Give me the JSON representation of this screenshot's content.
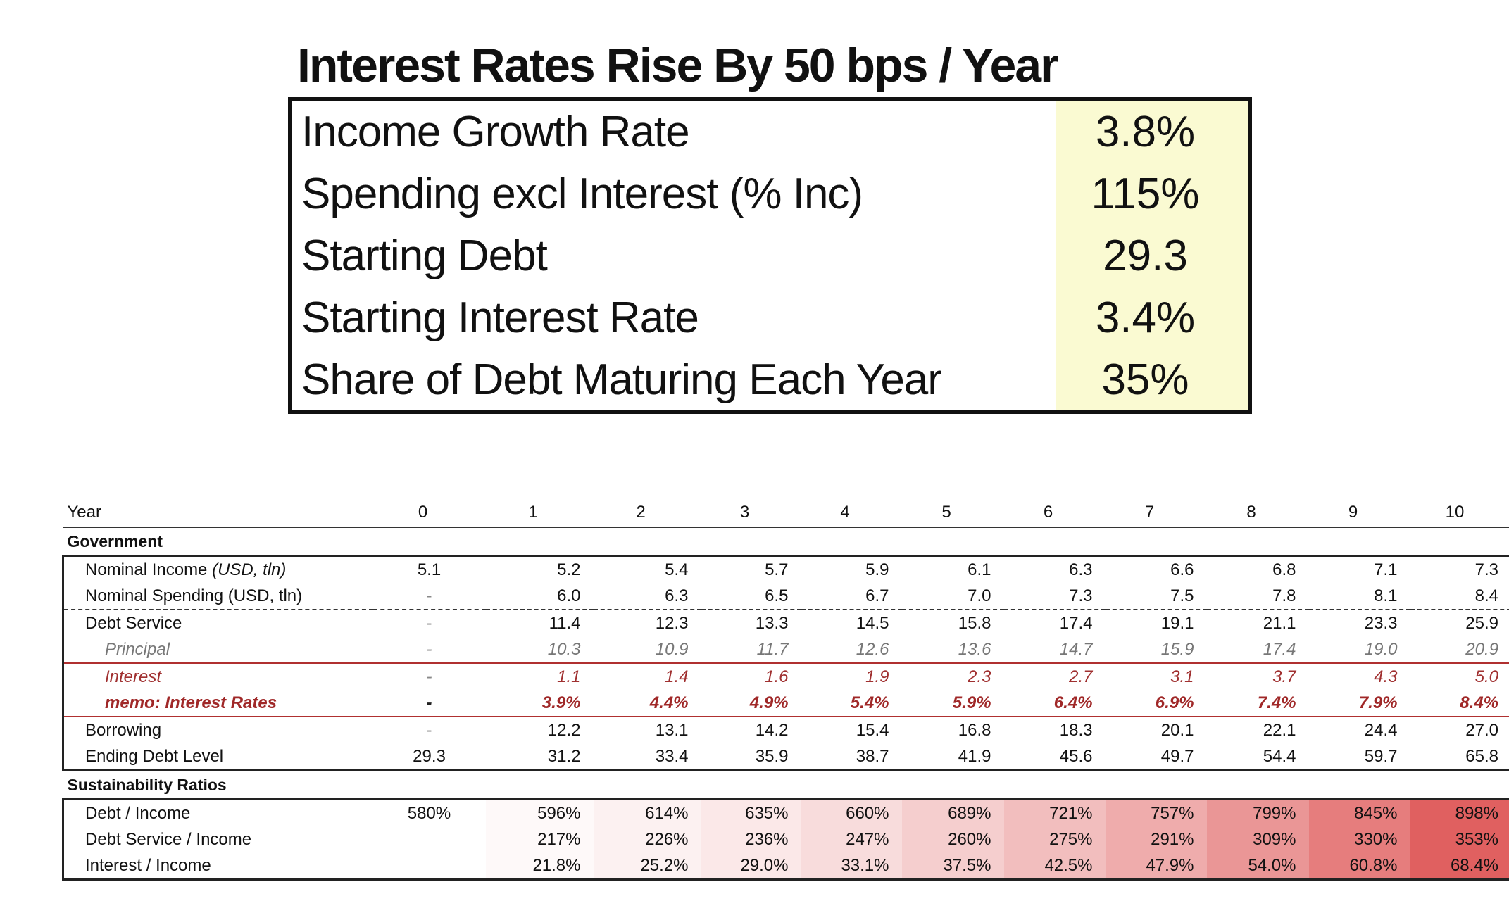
{
  "assumptions": {
    "title": "Interest Rates Rise By 50 bps /  Year",
    "rows": [
      {
        "label": "Income Growth Rate",
        "value": "3.8%"
      },
      {
        "label": "Spending excl Interest (% Inc)",
        "value": "115%"
      },
      {
        "label": "Starting Debt",
        "value": "29.3"
      },
      {
        "label": "Starting Interest Rate",
        "value": "3.4%"
      },
      {
        "label": "Share of Debt Maturing Each Year",
        "value": "35%"
      }
    ]
  },
  "table": {
    "year_label": "Year",
    "years": [
      "0",
      "1",
      "2",
      "3",
      "4",
      "5",
      "6",
      "7",
      "8",
      "9",
      "10"
    ],
    "government_label": "Government",
    "government_rows": [
      {
        "label": "Nominal Income (USD, tln)",
        "values": [
          "5.1",
          "5.2",
          "5.4",
          "5.7",
          "5.9",
          "6.1",
          "6.3",
          "6.6",
          "6.8",
          "7.1",
          "7.3"
        ]
      },
      {
        "label": "Nominal Spending (USD, tln)",
        "values": [
          "-",
          "6.0",
          "6.3",
          "6.5",
          "6.7",
          "7.0",
          "7.3",
          "7.5",
          "7.8",
          "8.1",
          "8.4"
        ]
      },
      {
        "label": "Debt Service",
        "values": [
          "-",
          "11.4",
          "12.3",
          "13.3",
          "14.5",
          "15.8",
          "17.4",
          "19.1",
          "21.1",
          "23.3",
          "25.9"
        ]
      },
      {
        "label": "Principal",
        "values": [
          "-",
          "10.3",
          "10.9",
          "11.7",
          "12.6",
          "13.6",
          "14.7",
          "15.9",
          "17.4",
          "19.0",
          "20.9"
        ]
      },
      {
        "label": "Interest",
        "values": [
          "-",
          "1.1",
          "1.4",
          "1.6",
          "1.9",
          "2.3",
          "2.7",
          "3.1",
          "3.7",
          "4.3",
          "5.0"
        ]
      },
      {
        "label": "memo: Interest Rates",
        "values": [
          "-",
          "3.9%",
          "4.4%",
          "4.9%",
          "5.4%",
          "5.9%",
          "6.4%",
          "6.9%",
          "7.4%",
          "7.9%",
          "8.4%"
        ]
      },
      {
        "label": "Borrowing",
        "values": [
          "-",
          "12.2",
          "13.1",
          "14.2",
          "15.4",
          "16.8",
          "18.3",
          "20.1",
          "22.1",
          "24.4",
          "27.0"
        ]
      },
      {
        "label": "Ending Debt Level",
        "values": [
          "29.3",
          "31.2",
          "33.4",
          "35.9",
          "38.7",
          "41.9",
          "45.6",
          "49.7",
          "54.4",
          "59.7",
          "65.8"
        ]
      }
    ],
    "sustainability_label": "Sustainability Ratios",
    "sustainability_rows": [
      {
        "label": "Debt / Income",
        "values": [
          "580%",
          "596%",
          "614%",
          "635%",
          "660%",
          "689%",
          "721%",
          "757%",
          "799%",
          "845%",
          "898%"
        ]
      },
      {
        "label": "Debt Service / Income",
        "values": [
          "",
          "217%",
          "226%",
          "236%",
          "247%",
          "260%",
          "275%",
          "291%",
          "309%",
          "330%",
          "353%"
        ]
      },
      {
        "label": "Interest / Income",
        "values": [
          "",
          "21.8%",
          "25.2%",
          "29.0%",
          "33.1%",
          "37.5%",
          "42.5%",
          "47.9%",
          "54.0%",
          "60.8%",
          "68.4%"
        ]
      }
    ],
    "heat_colors": {
      "low": "#ffffff",
      "high": "#e06060"
    }
  }
}
